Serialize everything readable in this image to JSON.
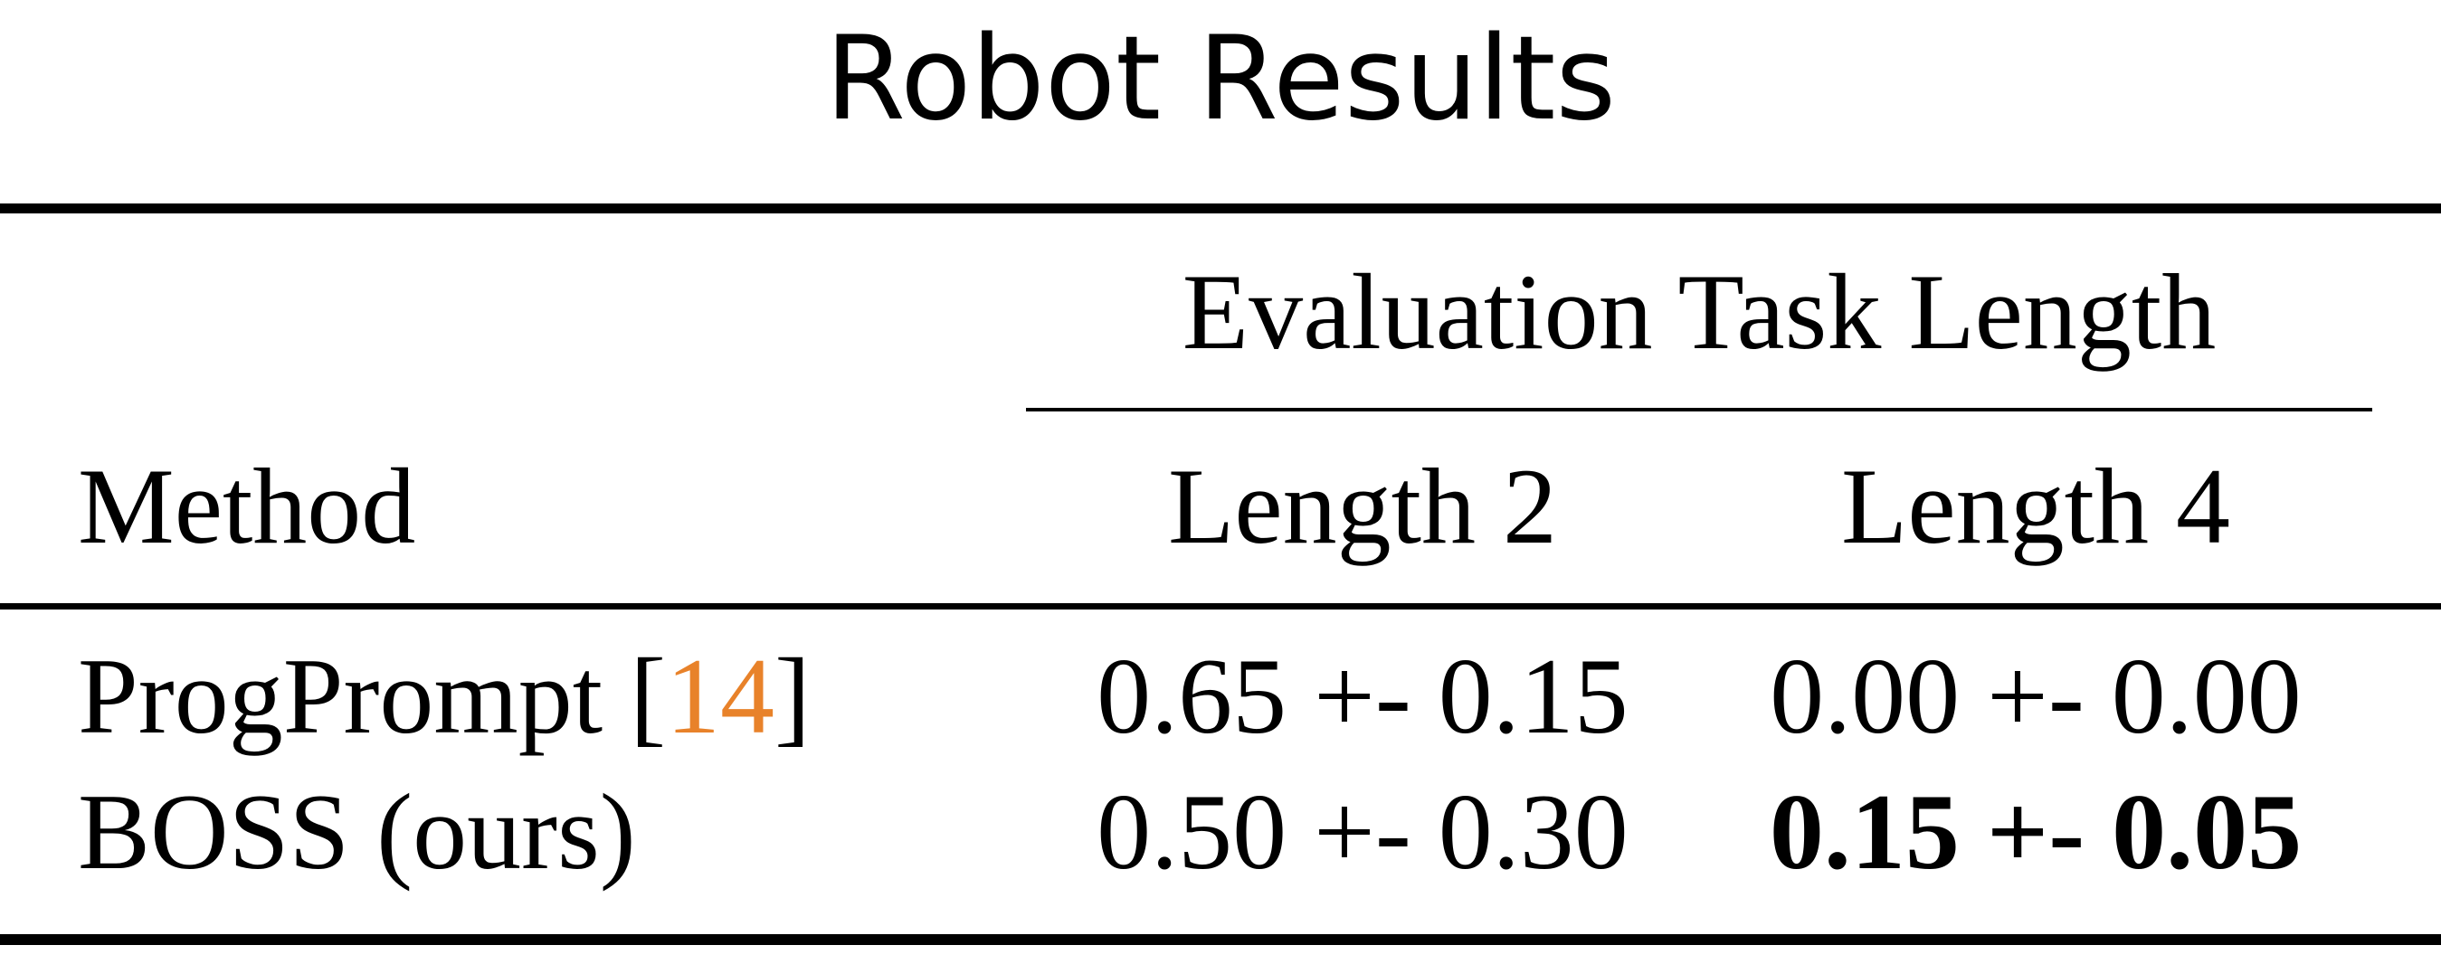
{
  "title": "Robot Results",
  "table": {
    "group_header": "Evaluation Task Length",
    "columns": {
      "method": "Method",
      "length2": "Length 2",
      "length4": "Length 4"
    },
    "rows": [
      {
        "method_name": "ProgPrompt",
        "citation_open": "[",
        "citation": "14",
        "citation_close": "]",
        "length2": "0.65 +- 0.15",
        "length4": "0.00 +- 0.00"
      },
      {
        "method_name": "BOSS (ours)",
        "length2": "0.50 +- 0.30",
        "length4": "0.15 +- 0.05"
      }
    ]
  },
  "colors": {
    "text": "#000000",
    "citation": "#e8822a",
    "background": "#ffffff"
  }
}
